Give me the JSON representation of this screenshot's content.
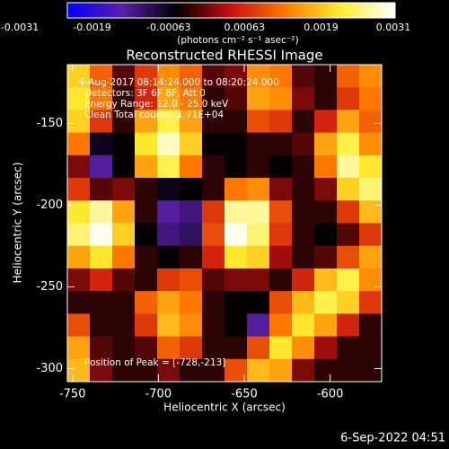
{
  "chart_data": {
    "type": "heatmap",
    "title": "Reconstructed RHESSI Image",
    "xlabel": "Heliocentric X (arcsec)",
    "ylabel": "Heliocentric Y (arcsec)",
    "xlim": [
      -753,
      -570
    ],
    "xticks": [
      -750,
      -700,
      -650,
      -600
    ],
    "ylim": [
      -308,
      -114
    ],
    "yticks": [
      -150,
      -200,
      -250,
      -300
    ],
    "annotations": [
      "4-Aug-2017 08:14:24.000 to 08:20:24.000",
      "Detectors: 3F 6F 8F, Att 0",
      "Energy Range: 12.0 - 25.0 keV",
      "Clean     Total counts: 1.71E+04",
      "Position of Peak = [-728,-213]"
    ],
    "timestamp": "6-Sep-2022 04:51",
    "colorbar": {
      "lim": [
        -0.0031,
        0.0031
      ],
      "ticks": [
        -0.0031,
        -0.0019,
        -0.00063,
        0.00063,
        0.0019,
        0.0031
      ],
      "label": "(photons cm⁻² s⁻¹ asec⁻²)",
      "colors": [
        "#0000ff",
        "#5a1fa8",
        "#000000",
        "#c81010",
        "#ff7a00",
        "#ffee30",
        "#ffffff"
      ]
    },
    "z": [
      [
        0.0018,
        0.0008,
        -0.0006,
        0.0004,
        0.0012,
        0.0008,
        -0.0006,
        -0.0004,
        0.0012,
        0.001,
        -0.0006,
        -0.0008,
        0.0008,
        0.0012
      ],
      [
        0.002,
        0.001,
        -0.0008,
        0.0002,
        0.0014,
        0.001,
        -0.0008,
        -0.0006,
        0.0014,
        0.0012,
        -0.0004,
        -0.0008,
        0.0004,
        0.001
      ],
      [
        0.0018,
        0.0004,
        -0.0008,
        0.0014,
        0.0022,
        0.0014,
        -0.0008,
        -0.0008,
        0.0006,
        0.0004,
        -0.0008,
        0.0002,
        0.0014,
        0.0008
      ],
      [
        0.001,
        -0.0012,
        -0.001,
        0.002,
        0.0028,
        0.0018,
        -0.001,
        -0.001,
        -0.0008,
        -0.0008,
        -0.0006,
        0.0014,
        0.0022,
        0.0012
      ],
      [
        -0.0004,
        -0.002,
        -0.001,
        0.0014,
        0.0022,
        0.001,
        -0.0008,
        -0.001,
        -0.0008,
        -0.001,
        -0.0008,
        0.001,
        0.0026,
        0.002
      ],
      [
        0.0004,
        -0.0006,
        -0.0004,
        -0.0008,
        -0.0012,
        -0.001,
        -0.0008,
        0.001,
        0.0012,
        -0.0004,
        -0.0008,
        -0.0004,
        0.0018,
        0.0024
      ],
      [
        0.002,
        0.0026,
        0.0014,
        -0.0008,
        -0.002,
        -0.0018,
        0.0004,
        0.0026,
        0.0026,
        0.0006,
        -0.0008,
        -0.0008,
        0.0004,
        0.0016
      ],
      [
        0.0024,
        0.003,
        0.0018,
        -0.001,
        -0.0018,
        -0.0016,
        0.0006,
        0.003,
        0.0024,
        0.0004,
        -0.0008,
        -0.001,
        -0.0006,
        0.0004
      ],
      [
        0.0014,
        0.002,
        0.001,
        -0.0008,
        -0.001,
        -0.0008,
        0.0002,
        0.002,
        0.0018,
        -0.0002,
        -0.0008,
        -0.0006,
        0.0006,
        0.0014
      ],
      [
        -0.0004,
        0.0002,
        -0.0006,
        -0.0008,
        0.0004,
        0.0006,
        -0.0006,
        -0.0004,
        -0.0004,
        -0.0008,
        0.0002,
        0.0016,
        0.0022,
        0.0012
      ],
      [
        -0.0008,
        -0.0008,
        -0.0008,
        0.0008,
        0.0014,
        0.001,
        -0.0008,
        -0.001,
        -0.001,
        0.0006,
        0.0016,
        0.0022,
        0.0018,
        0.0004
      ],
      [
        0.0006,
        -0.0008,
        -0.0008,
        0.0004,
        0.0016,
        0.0012,
        -0.0008,
        -0.001,
        -0.002,
        0.001,
        0.002,
        0.0014,
        0.0002,
        -0.0008
      ],
      [
        0.0014,
        -0.0006,
        -0.0008,
        -0.0006,
        0.0008,
        0.0004,
        -0.0008,
        -0.0008,
        0.0006,
        0.002,
        0.0012,
        -0.0002,
        -0.0008,
        -0.0008
      ],
      [
        0.0016,
        -0.0004,
        -0.0008,
        -0.0008,
        -0.0004,
        -0.0008,
        -0.0008,
        0.0006,
        0.0016,
        0.0014,
        -0.0004,
        -0.0008,
        -0.0008,
        -0.0008
      ]
    ]
  }
}
